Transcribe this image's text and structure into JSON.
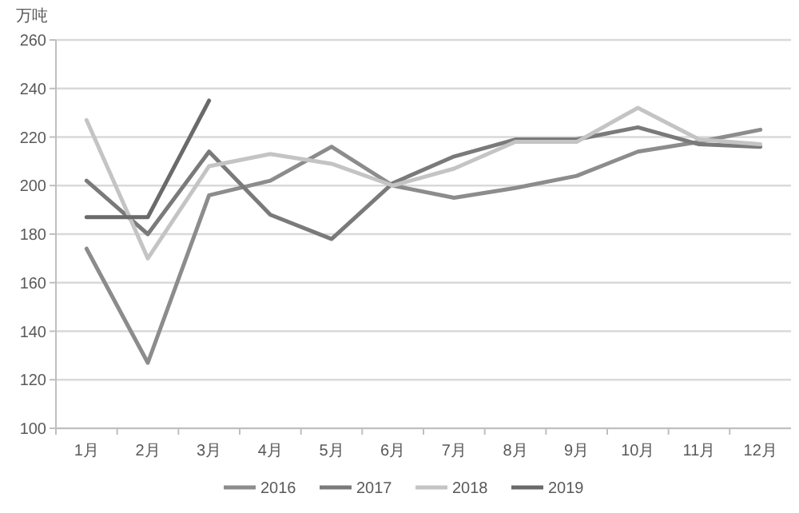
{
  "chart_data": {
    "type": "line",
    "ylabel": "万吨",
    "categories": [
      "1月",
      "2月",
      "3月",
      "4月",
      "5月",
      "6月",
      "7月",
      "8月",
      "9月",
      "10月",
      "11月",
      "12月"
    ],
    "series": [
      {
        "name": "2016",
        "color": "#8c8c8c",
        "values": [
          174,
          127,
          196,
          202,
          216,
          200,
          195,
          199,
          204,
          214,
          218,
          223
        ]
      },
      {
        "name": "2017",
        "color": "#7a7a7a",
        "values": [
          202,
          180,
          214,
          188,
          178,
          201,
          212,
          219,
          219,
          224,
          217,
          216
        ]
      },
      {
        "name": "2018",
        "color": "#c4c4c4",
        "values": [
          227,
          170,
          208,
          213,
          209,
          200,
          207,
          218,
          218,
          232,
          219,
          217
        ]
      },
      {
        "name": "2019",
        "color": "#6a6a6a",
        "values": [
          187,
          187,
          235,
          null,
          null,
          null,
          null,
          null,
          null,
          null,
          null,
          null
        ]
      }
    ],
    "ylim": [
      100,
      260
    ],
    "yticks": [
      100,
      120,
      140,
      160,
      180,
      200,
      220,
      240,
      260
    ],
    "grid": "y",
    "legend": "bottom",
    "marker": "none",
    "line_style": "solid"
  }
}
